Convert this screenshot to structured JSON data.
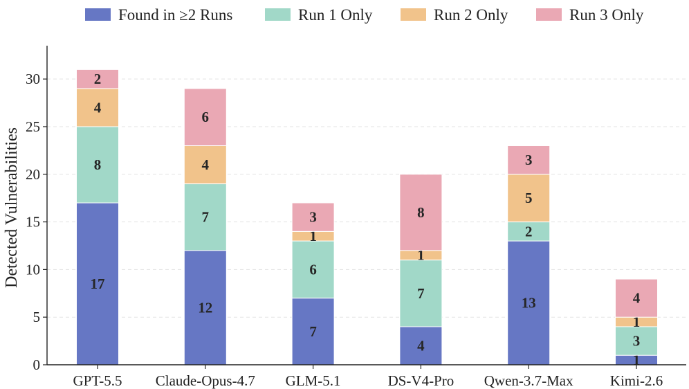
{
  "chart_data": {
    "type": "bar",
    "stacked": true,
    "categories": [
      "GPT-5.5",
      "Claude-Opus-4.7",
      "GLM-5.1",
      "DS-V4-Pro",
      "Qwen-3.7-Max",
      "Kimi-2.6"
    ],
    "series": [
      {
        "name": "Found in ≥2 Runs",
        "color": "#6677c4",
        "values": [
          17,
          12,
          7,
          4,
          13,
          1
        ]
      },
      {
        "name": "Run 1 Only",
        "color": "#a1d8c8",
        "values": [
          8,
          7,
          6,
          7,
          2,
          3
        ]
      },
      {
        "name": "Run 2 Only",
        "color": "#f1c38b",
        "values": [
          4,
          4,
          1,
          1,
          5,
          1
        ]
      },
      {
        "name": "Run 3 Only",
        "color": "#eaa8b4",
        "values": [
          2,
          6,
          3,
          8,
          3,
          4
        ]
      }
    ],
    "title": "",
    "xlabel": "",
    "ylabel": "Detected Vulnerabilities",
    "ylim": [
      0,
      33.5
    ],
    "yticks": [
      0,
      5,
      10,
      15,
      20,
      25,
      30
    ],
    "grid": "horizontal-dashed",
    "legend_position": "top"
  }
}
